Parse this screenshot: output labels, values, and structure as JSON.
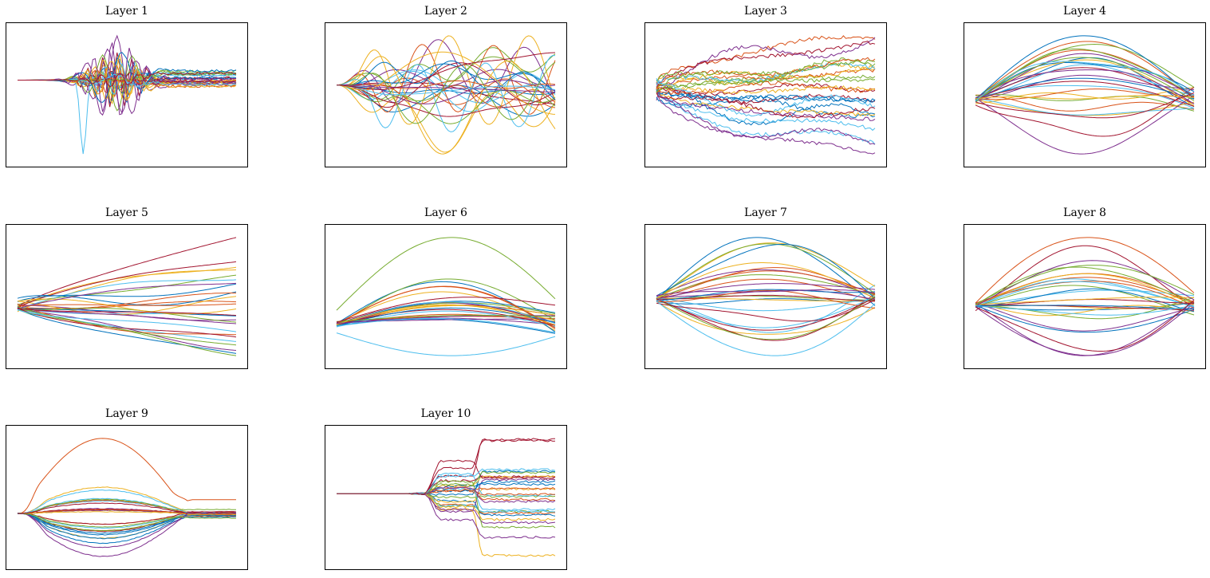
{
  "figure": {
    "palette": [
      "#0072BD",
      "#D95319",
      "#EDB120",
      "#7E2F8E",
      "#77AC30",
      "#4DBEEE",
      "#A2142F"
    ],
    "lines_per_panel": 28,
    "axes_ticks_visible": false
  },
  "chart_data": [
    {
      "type": "line",
      "title": "Layer 1",
      "pattern": "burst",
      "seed": 11
    },
    {
      "type": "line",
      "title": "Layer 2",
      "pattern": "wavy",
      "seed": 23
    },
    {
      "type": "line",
      "title": "Layer 3",
      "pattern": "spread",
      "seed": 37
    },
    {
      "type": "line",
      "title": "Layer 4",
      "pattern": "arch",
      "seed": 41
    },
    {
      "type": "line",
      "title": "Layer 5",
      "pattern": "fan",
      "seed": 53
    },
    {
      "type": "line",
      "title": "Layer 6",
      "pattern": "bowl",
      "seed": 67
    },
    {
      "type": "line",
      "title": "Layer 7",
      "pattern": "lens",
      "seed": 71
    },
    {
      "type": "line",
      "title": "Layer 8",
      "pattern": "lens",
      "seed": 89
    },
    {
      "type": "line",
      "title": "Layer 9",
      "pattern": "bowl-late",
      "seed": 97
    },
    {
      "type": "line",
      "title": "Layer 10",
      "pattern": "step",
      "seed": 103
    }
  ]
}
